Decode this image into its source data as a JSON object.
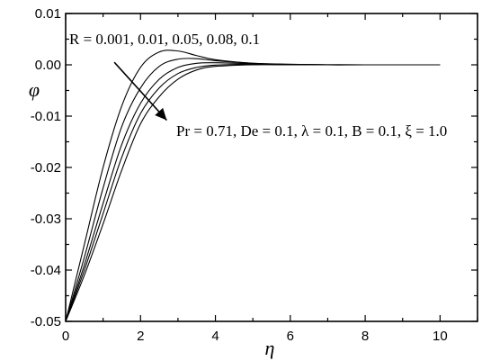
{
  "chart_data": {
    "type": "line",
    "title": "",
    "xlabel": "η",
    "ylabel": "φ",
    "xlim": [
      0,
      11
    ],
    "ylim": [
      -0.05,
      0.01
    ],
    "x_ticks": [
      0,
      1,
      2,
      3,
      4,
      5,
      6,
      7,
      8,
      9,
      10,
      11
    ],
    "x_tick_labels": [
      "0",
      "",
      "2",
      "",
      "4",
      "",
      "6",
      "",
      "8",
      "",
      "10",
      ""
    ],
    "y_ticks": [
      -0.05,
      -0.04,
      -0.03,
      -0.02,
      -0.01,
      0.0,
      0.01
    ],
    "y_tick_labels": [
      "-0.05",
      "-0.04",
      "-0.03",
      "-0.02",
      "-0.01",
      "0.00",
      "0.01"
    ],
    "grid": false,
    "annotations": {
      "parameter_label": "R = 0.001, 0.01, 0.05, 0.08, 0.1",
      "conditions_label": "Pr = 0.71, De = 0.1, λ = 0.1, B = 0.1, ξ = 1.0",
      "arrow_from": [
        1.3,
        0.0005
      ],
      "arrow_to": [
        2.7,
        -0.0108
      ]
    },
    "series": [
      {
        "x": [
          0,
          0.5,
          1,
          1.5,
          2,
          2.5,
          3,
          3.5,
          4,
          5,
          6,
          7,
          8,
          10
        ],
        "y": [
          -0.05,
          -0.035,
          -0.02,
          -0.008,
          -0.0005,
          0.0025,
          0.0027,
          0.0018,
          0.001,
          0.0003,
          0.0001,
          2e-05,
          0,
          0
        ]
      },
      {
        "x": [
          0,
          0.5,
          1,
          1.5,
          2,
          2.5,
          3,
          3.5,
          4,
          5,
          6,
          7,
          8,
          10
        ],
        "y": [
          -0.05,
          -0.0375,
          -0.024,
          -0.012,
          -0.0045,
          -0.0003,
          0.0011,
          0.0012,
          0.0008,
          0.0003,
          0.0001,
          2e-05,
          0,
          0
        ]
      },
      {
        "x": [
          0,
          0.5,
          1,
          1.5,
          2,
          2.5,
          3,
          3.5,
          4,
          5,
          6,
          7,
          8,
          10
        ],
        "y": [
          -0.05,
          -0.039,
          -0.027,
          -0.0155,
          -0.0075,
          -0.0028,
          -0.0005,
          0.0003,
          0.0004,
          0.0002,
          5e-05,
          0,
          0,
          0
        ]
      },
      {
        "x": [
          0,
          0.5,
          1,
          1.5,
          2,
          2.5,
          3,
          3.5,
          4,
          5,
          6,
          7,
          8,
          10
        ],
        "y": [
          -0.05,
          -0.04,
          -0.029,
          -0.018,
          -0.0095,
          -0.0045,
          -0.0017,
          -0.0005,
          -5e-05,
          0.0001,
          3e-05,
          0,
          0,
          0
        ]
      },
      {
        "x": [
          0,
          0.5,
          1,
          1.5,
          2,
          2.5,
          3,
          3.5,
          4,
          5,
          6,
          7,
          8,
          10
        ],
        "y": [
          -0.05,
          -0.041,
          -0.031,
          -0.0205,
          -0.0115,
          -0.0062,
          -0.0028,
          -0.001,
          -0.0003,
          0,
          0,
          0,
          0,
          0
        ]
      }
    ]
  }
}
